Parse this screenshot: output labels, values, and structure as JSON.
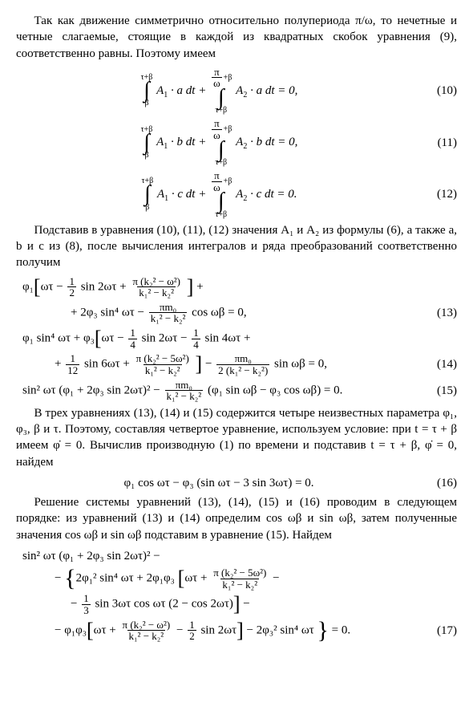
{
  "para1": "Так как движение симметрично относительно полупериода π/ω, то нечетные и четные слагаемые, стоящие в каждой из квадратных скобок уравнения (9), соответственно равны. Поэтому имеем",
  "eq10": {
    "upper1": "τ+β",
    "lower1": "β",
    "upper2_a": "π",
    "upper2_b": "ω",
    "upper2_c": "+β",
    "lower2": "τ+β",
    "t1": "A",
    "s1": "1",
    "mid1": " · a dt + ",
    "t2": "A",
    "s2": "2",
    "mid2": " · a dt = 0,",
    "num": "(10)"
  },
  "eq11": {
    "upper1": "τ+β",
    "lower1": "β",
    "upper2_a": "π",
    "upper2_b": "ω",
    "upper2_c": "+β",
    "lower2": "τ+β",
    "t1": "A",
    "s1": "1",
    "mid1": " · b dt + ",
    "t2": "A",
    "s2": "2",
    "mid2": " · b dt = 0,",
    "num": "(11)"
  },
  "eq12": {
    "upper1": "τ+β",
    "lower1": "β",
    "upper2_a": "π",
    "upper2_b": "ω",
    "upper2_c": "+β",
    "lower2": "τ+β",
    "t1": "A",
    "s1": "1",
    "mid1": " · c dt + ",
    "t2": "A",
    "s2": "2",
    "mid2": " · c dt = 0.",
    "num": "(12)"
  },
  "para2": "Подставив в уравнения (10), (11), (12) значения A₁ и A₂ из формулы (6), а также a, b и c из (8), после вычисления интегралов и ряда преобразований соответственно получим",
  "eq13": {
    "line1_a": "φ₁",
    "line1_b": "ωτ − ",
    "half_n": "1",
    "half_d": "2",
    "line1_c": " sin 2ωτ + ",
    "f1_n": "π (k₂² − ω²)",
    "f1_d": "k₁² − k₂²",
    "line1_d": " +",
    "line2_a": "+ 2φ₃ sin⁴ ωτ − ",
    "f2_n": "πm₀",
    "f2_d": "k₁² − k₂²",
    "line2_b": " cos ωβ = 0,",
    "num": "(13)"
  },
  "eq14": {
    "line1_a": "φ₁ sin⁴ ωτ + φ₃",
    "line1_b": "ωτ − ",
    "q_n": "1",
    "q_d": "4",
    "line1_c": " sin 2ωτ − ",
    "q2_n": "1",
    "q2_d": "4",
    "line1_d": " sin 4ωτ +",
    "line2_a": "+ ",
    "tw_n": "1",
    "tw_d": "12",
    "line2_b": " sin 6ωτ + ",
    "f1_n": "π (k₂² − 5ω²)",
    "f1_d": "k₁² − k₂²",
    "line2_c": " − ",
    "f2_n": "πm₀",
    "f2_d": "2 (k₁² − k₂²)",
    "line2_d": " sin ωβ = 0,",
    "num": "(14)"
  },
  "eq15": {
    "a": "sin² ωτ (φ₁ + 2φ₃ sin 2ωτ)² − ",
    "f_n": "πm₀",
    "f_d": "k₁² − k₂²",
    "b": " (φ₁ sin ωβ − φ₃ cos ωβ) = 0.",
    "num": "(15)"
  },
  "para3": "В трех уравнениях (13), (14) и (15) содержится четыре неизвестных параметра φ₁, φ₃, β и τ. Поэтому, составляя четвертое уравнение, используем условие: при t = τ + β имеем φ̇ = 0. Вычислив производную (1) по времени и подставив t = τ + β, φ̇ = 0, найдем",
  "eq16": {
    "body": "φ₁ cos ωτ − φ₃ (sin ωτ − 3 sin 3ωτ) = 0.",
    "num": "(16)"
  },
  "para4": "Решение системы уравнений (13), (14), (15) и (16) проводим в следующем порядке: из уравнений (13) и (14) определим cos ωβ и sin ωβ, затем полученные значения cos ωβ и sin ωβ подставим в уравнение (15). Найдем",
  "eq17": {
    "l1": "sin² ωτ (φ₁ + 2φ₃ sin 2ωτ)² −",
    "l2_a": "− ",
    "l2_b": "2φ₁² sin⁴ ωτ + 2φ₁φ₃",
    "l2_c": "ωτ + ",
    "f1_n": "π (k₂² − 5ω²)",
    "f1_d": "k₁² − k₂²",
    "l2_d": " −",
    "l3_a": "− ",
    "th_n": "1",
    "th_d": "3",
    "l3_b": " sin 3ωτ cos ωτ (2 − cos 2ωτ)",
    "l3_c": " −",
    "l4_a": "− φ₁φ₃",
    "l4_b": "ωτ + ",
    "f2_n": "π (k₂² − ω²)",
    "f2_d": "k₁² − k₂²",
    "l4_c": " − ",
    "h_n": "1",
    "h_d": "2",
    "l4_d": " sin 2ωτ",
    "l4_e": " − 2φ₃² sin⁴ ωτ",
    "l4_f": " = 0.",
    "num": "(17)"
  }
}
